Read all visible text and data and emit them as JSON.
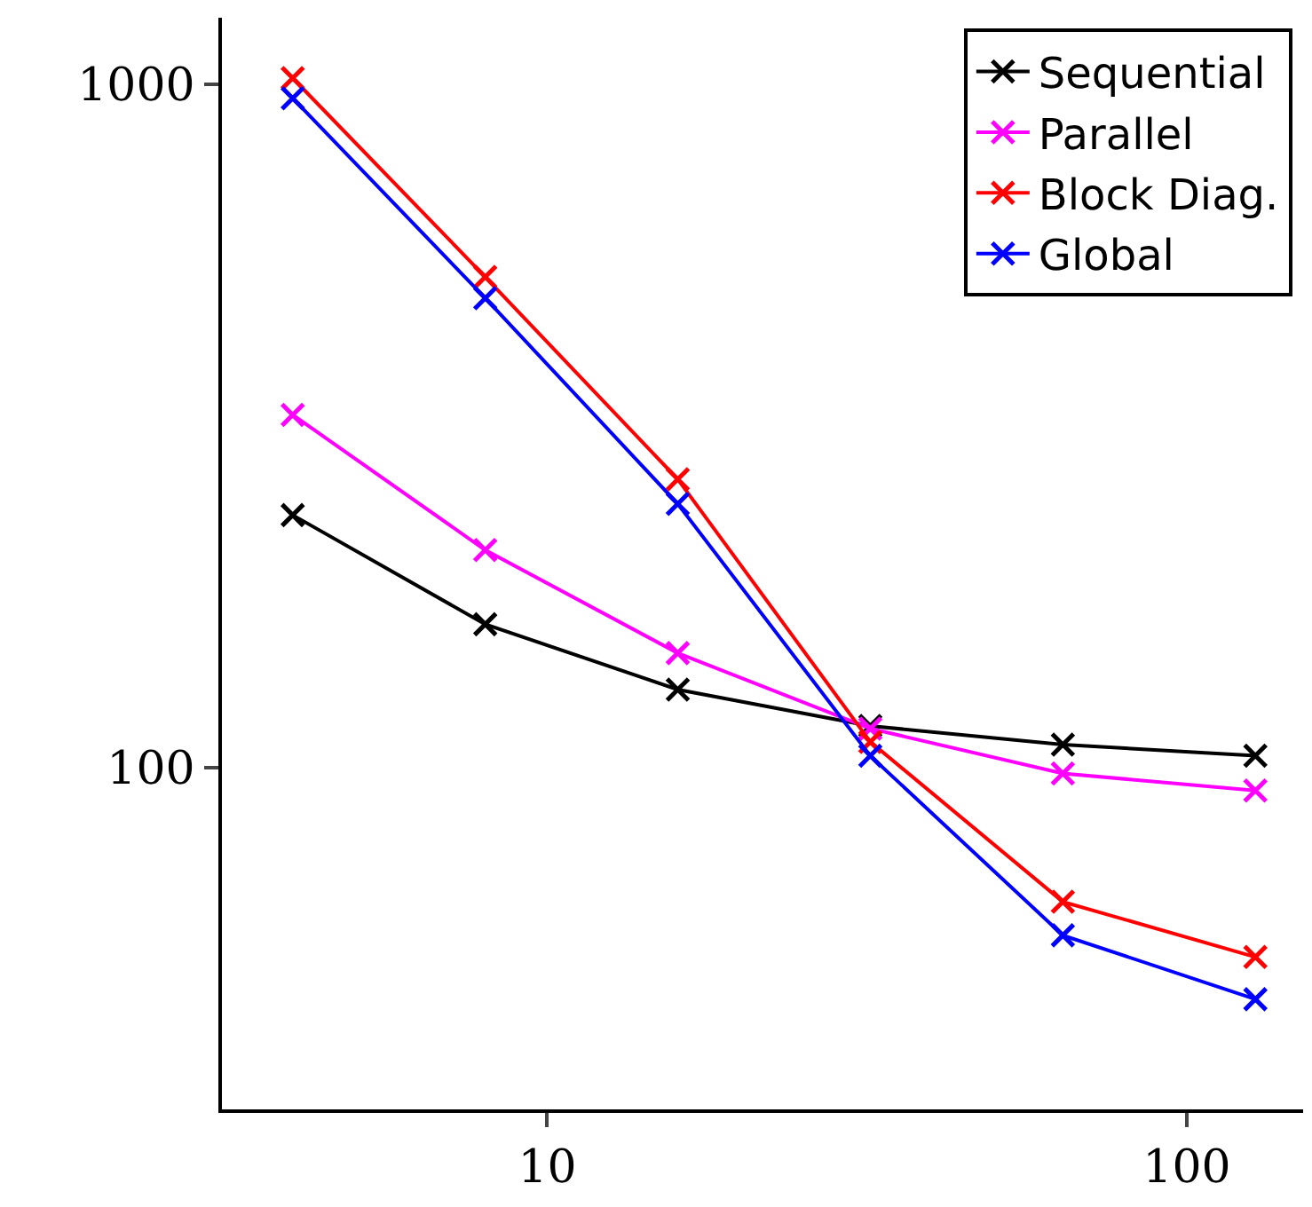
{
  "chart_data": {
    "type": "line",
    "log": "xy",
    "legend": "top right",
    "marker": "cross",
    "line_style": "solid",
    "x": [
      4,
      8,
      16,
      32,
      64,
      128
    ],
    "xlim": [
      3.1,
      152
    ],
    "xticks": [
      10,
      100
    ],
    "ylim": [
      31.6,
      1250
    ],
    "yticks": [
      100,
      1000
    ],
    "series": [
      {
        "name": "Sequential",
        "color": "#000000",
        "values": [
          234,
          162,
          130,
          115,
          108,
          104
        ]
      },
      {
        "name": "Parallel",
        "color": "#ff00ff",
        "values": [
          328,
          208,
          147,
          114,
          98,
          92.5
        ]
      },
      {
        "name": "Block Diag.",
        "color": "#ff0000",
        "values": [
          1020,
          522,
          264,
          109,
          63.6,
          52.8
        ]
      },
      {
        "name": "Global",
        "color": "#0000ff",
        "values": [
          953,
          486,
          243,
          104,
          56.8,
          45.8
        ]
      }
    ]
  }
}
